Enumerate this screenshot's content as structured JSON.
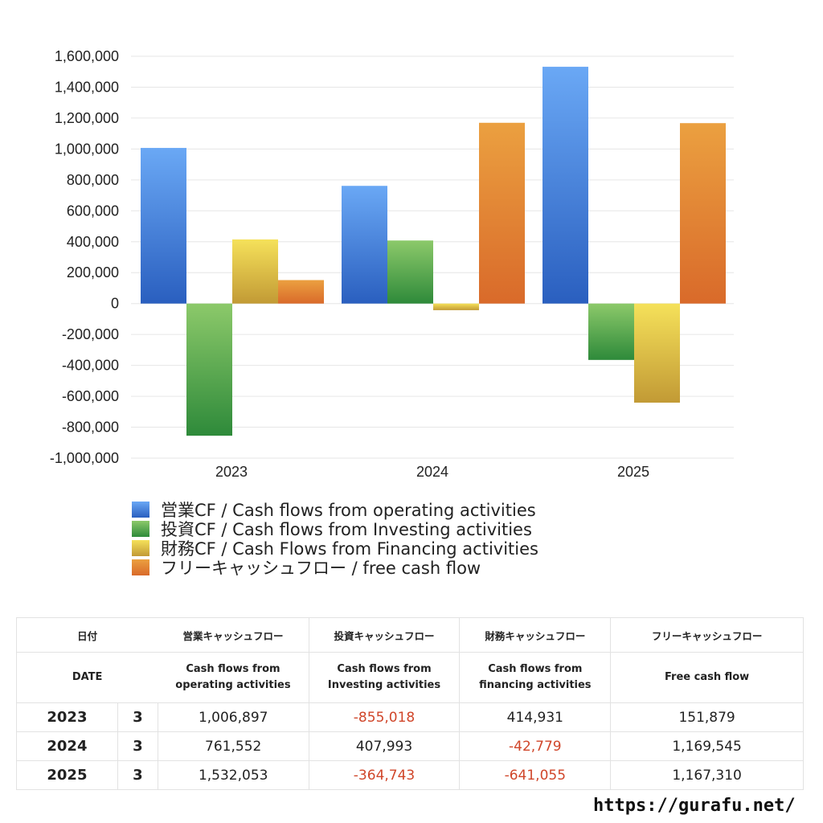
{
  "chart_data": {
    "type": "bar",
    "categories": [
      "2023",
      "2024",
      "2025"
    ],
    "series": [
      {
        "name": "営業CF / Cash flows from operating activities",
        "values": [
          1006897,
          761552,
          1532053
        ],
        "color_top": "#6aa8f5",
        "color_bottom": "#2a5fbf"
      },
      {
        "name": "投資CF / Cash flows from Investing activities",
        "values": [
          -855018,
          407993,
          -364743
        ],
        "color_top": "#8cc96a",
        "color_bottom": "#2e8a3a"
      },
      {
        "name": "財務CF / Cash Flows from Financing activities",
        "values": [
          414931,
          -42779,
          -641055
        ],
        "color_top": "#f5e15a",
        "color_bottom": "#c29a35"
      },
      {
        "name": "フリーキャッシュフロー / free cash flow",
        "values": [
          151879,
          1169545,
          1167310
        ],
        "color_top": "#eba040",
        "color_bottom": "#d96a2a"
      }
    ],
    "ylim": [
      -1000000,
      1600000
    ],
    "yticks": [
      "1,600,000",
      "1,400,000",
      "1,200,000",
      "1,000,000",
      "800,000",
      "600,000",
      "400,000",
      "200,000",
      "0",
      "-200,000",
      "-400,000",
      "-600,000",
      "-800,000",
      "-1,000,000"
    ],
    "ytick_values": [
      1600000,
      1400000,
      1200000,
      1000000,
      800000,
      600000,
      400000,
      200000,
      0,
      -200000,
      -400000,
      -600000,
      -800000,
      -1000000
    ],
    "grid": true,
    "legend": "bottom"
  },
  "table": {
    "header_jp": {
      "date": "日付",
      "operating": "営業キャッシュフロー",
      "investing": "投資キャッシュフロー",
      "financing": "財務キャッシュフロー",
      "free": "フリーキャッシュフロー"
    },
    "header_en": {
      "date": "DATE",
      "operating_1": "Cash flows from",
      "operating_2": "operating activities",
      "investing_1": "Cash flows from",
      "investing_2": "Investing activities",
      "financing_1": "Cash flows from",
      "financing_2": "financing activities",
      "free": "Free cash flow"
    },
    "rows": [
      {
        "year": "2023",
        "month": "3",
        "operating": "1,006,897",
        "investing": "-855,018",
        "financing": "414,931",
        "free": "151,879"
      },
      {
        "year": "2024",
        "month": "3",
        "operating": "761,552",
        "investing": "407,993",
        "financing": "-42,779",
        "free": "1,169,545"
      },
      {
        "year": "2025",
        "month": "3",
        "operating": "1,532,053",
        "investing": "-364,743",
        "financing": "-641,055",
        "free": "1,167,310"
      }
    ]
  },
  "footer": {
    "url": "https://gurafu.net/"
  }
}
